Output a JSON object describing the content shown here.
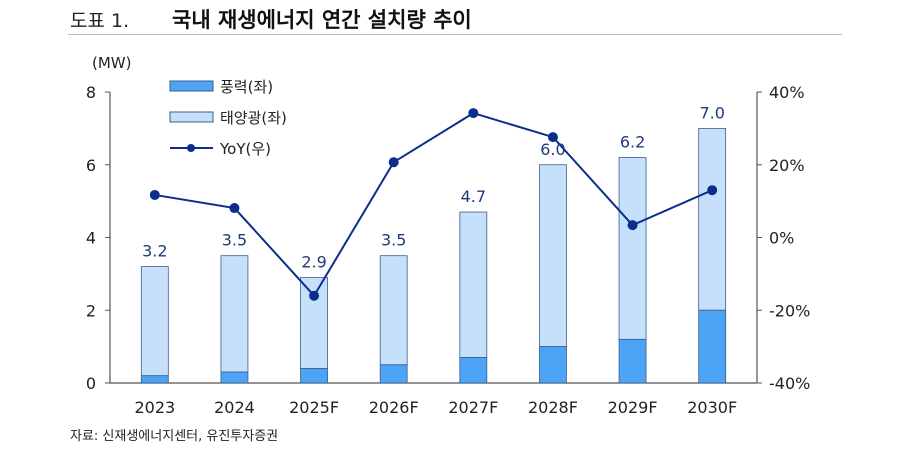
{
  "header": {
    "label": "도표 1.",
    "title": "국내 재생에너지 연간 설치량 추이"
  },
  "source": "자료: 신재생에너지센터, 유진투자증권",
  "colors": {
    "wind": "#4da3f5",
    "solar": "#c6e0fb",
    "yoy": "#0b2d8c",
    "border": "#3a5f8a",
    "label": "#1f3b7a"
  },
  "chart_data": {
    "type": "bar",
    "stacked": true,
    "categories": [
      "2023",
      "2024",
      "2025F",
      "2026F",
      "2027F",
      "2028F",
      "2029F",
      "2030F"
    ],
    "ylabel": "(MW)",
    "ylim": [
      0,
      8
    ],
    "yticks": [
      "0",
      "2",
      "4",
      "6",
      "8"
    ],
    "y2lim": [
      -40,
      40
    ],
    "y2ticks": [
      "-40%",
      "-20%",
      "0%",
      "20%",
      "40%"
    ],
    "legend_placement": "top-left",
    "series": [
      {
        "name": "풍력(좌)",
        "type": "bar",
        "values": [
          0.2,
          0.3,
          0.4,
          0.5,
          0.7,
          1.0,
          1.2,
          2.0
        ]
      },
      {
        "name": "태양광(좌)",
        "type": "bar",
        "values": [
          3.0,
          3.2,
          2.5,
          3.0,
          4.0,
          5.0,
          5.0,
          5.0
        ]
      },
      {
        "name": "YoY(우)",
        "type": "line",
        "axis": "right",
        "values": [
          11.7,
          8.1,
          -16.0,
          20.7,
          34.2,
          27.6,
          3.4,
          13.0
        ]
      }
    ],
    "totals": [
      "3.2",
      "3.5",
      "2.9",
      "3.5",
      "4.7",
      "6.0",
      "6.2",
      "7.0"
    ]
  }
}
